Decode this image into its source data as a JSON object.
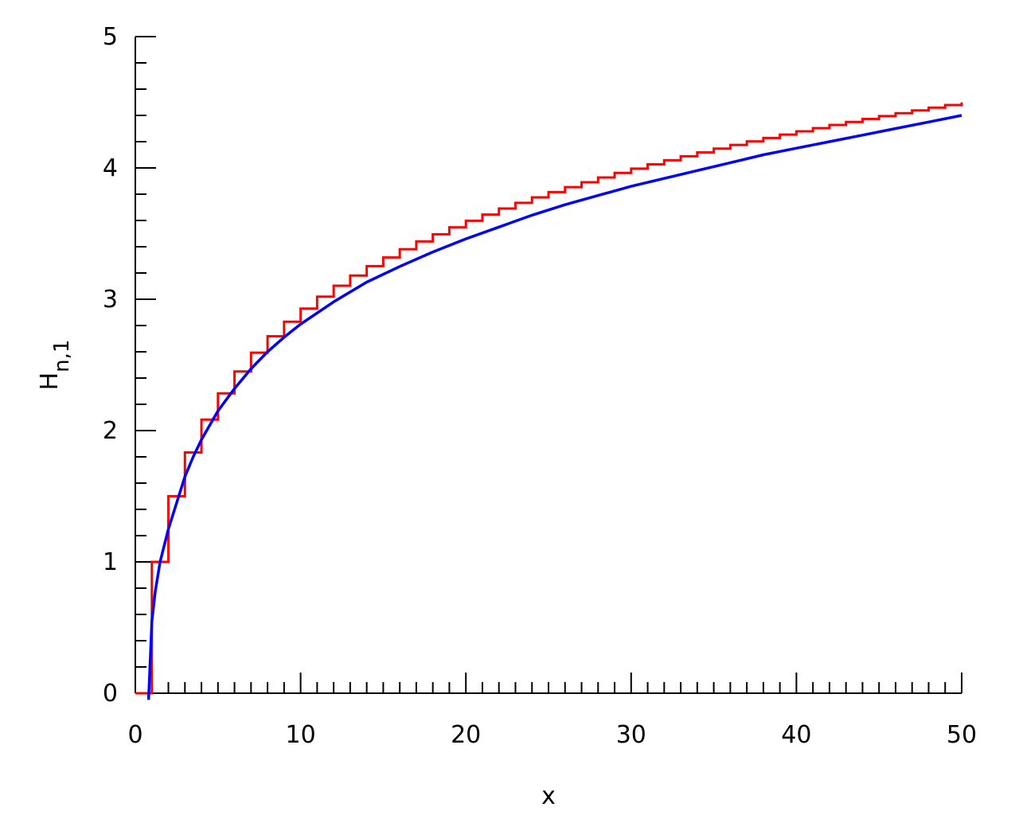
{
  "chart_data": {
    "type": "line",
    "xlabel": "x",
    "ylabel": "H",
    "ylabel_subscript": "n,1",
    "xlim": [
      0,
      50
    ],
    "ylim": [
      0,
      5
    ],
    "x_ticks": [
      "0",
      "10",
      "20",
      "30",
      "40",
      "50"
    ],
    "y_ticks": [
      "0",
      "1",
      "2",
      "3",
      "4",
      "5"
    ],
    "grid": false,
    "legend": "none",
    "series": [
      {
        "kind": "step",
        "color": "#ff0000",
        "x": [
          0,
          1,
          2,
          3,
          4,
          5,
          6,
          7,
          8,
          9,
          10,
          11,
          12,
          13,
          14,
          15,
          16,
          17,
          18,
          19,
          20,
          21,
          22,
          23,
          24,
          25,
          26,
          27,
          28,
          29,
          30,
          31,
          32,
          33,
          34,
          35,
          36,
          37,
          38,
          39,
          40,
          41,
          42,
          43,
          44,
          45,
          46,
          47,
          48,
          49,
          50
        ],
        "values": [
          0,
          1.0,
          1.5,
          1.833,
          2.083,
          2.283,
          2.45,
          2.593,
          2.718,
          2.829,
          2.929,
          3.02,
          3.103,
          3.18,
          3.252,
          3.318,
          3.381,
          3.44,
          3.495,
          3.548,
          3.598,
          3.645,
          3.691,
          3.734,
          3.776,
          3.816,
          3.854,
          3.891,
          3.927,
          3.962,
          3.995,
          4.027,
          4.058,
          4.089,
          4.118,
          4.147,
          4.175,
          4.202,
          4.228,
          4.254,
          4.279,
          4.303,
          4.327,
          4.35,
          4.373,
          4.395,
          4.417,
          4.438,
          4.459,
          4.479,
          4.499
        ]
      },
      {
        "kind": "curve",
        "color": "#0000ff",
        "x": [
          0.8,
          0.9,
          1,
          1.2,
          1.5,
          2,
          2.5,
          3,
          3.5,
          4,
          5,
          6,
          7,
          8,
          9,
          10,
          12,
          14,
          16,
          18,
          20,
          22,
          24,
          26,
          28,
          30,
          32,
          34,
          36,
          38,
          40,
          42,
          44,
          46,
          48,
          50
        ],
        "values": [
          -0.05,
          0.25,
          0.55,
          0.77,
          1.0,
          1.25,
          1.45,
          1.65,
          1.8,
          1.93,
          2.15,
          2.32,
          2.47,
          2.6,
          2.71,
          2.81,
          2.98,
          3.13,
          3.25,
          3.36,
          3.46,
          3.55,
          3.64,
          3.72,
          3.79,
          3.86,
          3.92,
          3.98,
          4.04,
          4.1,
          4.15,
          4.2,
          4.25,
          4.3,
          4.35,
          4.4
        ]
      }
    ]
  }
}
